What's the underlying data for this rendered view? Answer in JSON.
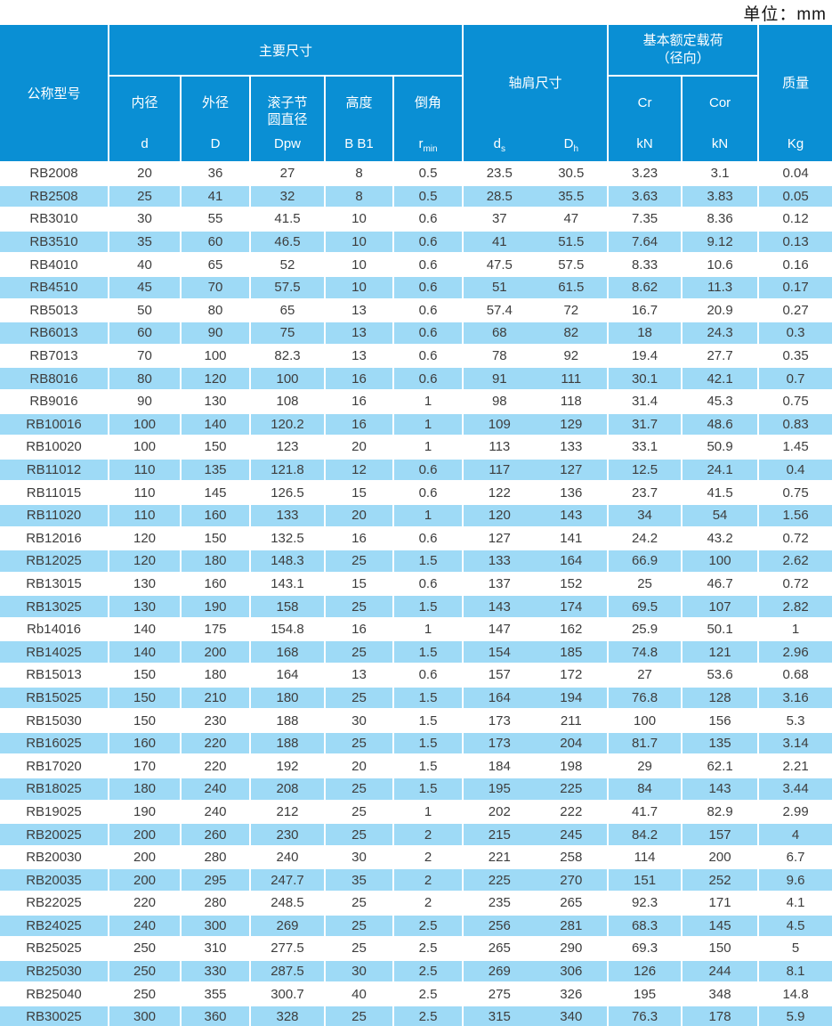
{
  "unit_label": "单位：mm",
  "colors": {
    "header_bg": "#0a8fd4",
    "row_alt_bg": "#9edaf6",
    "header_text": "#ffffff",
    "body_text": "#3d3d3d"
  },
  "table": {
    "header": {
      "model": "公称型号",
      "main_dims": "主要尺寸",
      "shoulder_dims": "轴肩尺寸",
      "load_line1": "基本额定载荷",
      "load_line2": "（径向）",
      "mass": "质量",
      "inner": {
        "label": "内径",
        "sym": "d"
      },
      "outer": {
        "label": "外径",
        "sym": "D"
      },
      "pitch": {
        "label_line1": "滚子节",
        "label_line2": "圆直径",
        "sym": "Dpw"
      },
      "height": {
        "label": "高度",
        "sym": "B B1"
      },
      "chamfer": {
        "label": "倒角",
        "sym_base": "r",
        "sym_sub": "min"
      },
      "ds": {
        "base": "d",
        "sub": "s"
      },
      "dh": {
        "base": "D",
        "sub": "h"
      },
      "cr": {
        "label": "Cr",
        "unit": "kN"
      },
      "cor": {
        "label": "Cor",
        "unit": "kN"
      },
      "mass_unit": "Kg"
    },
    "row_fields": [
      "model",
      "d",
      "D",
      "Dpw",
      "B B1",
      "r min",
      "ds",
      "Dh",
      "Cr",
      "Cor",
      "mass"
    ],
    "rows": [
      [
        "RB2008",
        "20",
        "36",
        "27",
        "8",
        "0.5",
        "23.5",
        "30.5",
        "3.23",
        "3.1",
        "0.04"
      ],
      [
        "RB2508",
        "25",
        "41",
        "32",
        "8",
        "0.5",
        "28.5",
        "35.5",
        "3.63",
        "3.83",
        "0.05"
      ],
      [
        "RB3010",
        "30",
        "55",
        "41.5",
        "10",
        "0.6",
        "37",
        "47",
        "7.35",
        "8.36",
        "0.12"
      ],
      [
        "RB3510",
        "35",
        "60",
        "46.5",
        "10",
        "0.6",
        "41",
        "51.5",
        "7.64",
        "9.12",
        "0.13"
      ],
      [
        "RB4010",
        "40",
        "65",
        "52",
        "10",
        "0.6",
        "47.5",
        "57.5",
        "8.33",
        "10.6",
        "0.16"
      ],
      [
        "RB4510",
        "45",
        "70",
        "57.5",
        "10",
        "0.6",
        "51",
        "61.5",
        "8.62",
        "11.3",
        "0.17"
      ],
      [
        "RB5013",
        "50",
        "80",
        "65",
        "13",
        "0.6",
        "57.4",
        "72",
        "16.7",
        "20.9",
        "0.27"
      ],
      [
        "RB6013",
        "60",
        "90",
        "75",
        "13",
        "0.6",
        "68",
        "82",
        "18",
        "24.3",
        "0.3"
      ],
      [
        "RB7013",
        "70",
        "100",
        "82.3",
        "13",
        "0.6",
        "78",
        "92",
        "19.4",
        "27.7",
        "0.35"
      ],
      [
        "RB8016",
        "80",
        "120",
        "100",
        "16",
        "0.6",
        "91",
        "111",
        "30.1",
        "42.1",
        "0.7"
      ],
      [
        "RB9016",
        "90",
        "130",
        "108",
        "16",
        "1",
        "98",
        "118",
        "31.4",
        "45.3",
        "0.75"
      ],
      [
        "RB10016",
        "100",
        "140",
        "120.2",
        "16",
        "1",
        "109",
        "129",
        "31.7",
        "48.6",
        "0.83"
      ],
      [
        "RB10020",
        "100",
        "150",
        "123",
        "20",
        "1",
        "113",
        "133",
        "33.1",
        "50.9",
        "1.45"
      ],
      [
        "RB11012",
        "110",
        "135",
        "121.8",
        "12",
        "0.6",
        "117",
        "127",
        "12.5",
        "24.1",
        "0.4"
      ],
      [
        "RB11015",
        "110",
        "145",
        "126.5",
        "15",
        "0.6",
        "122",
        "136",
        "23.7",
        "41.5",
        "0.75"
      ],
      [
        "RB11020",
        "110",
        "160",
        "133",
        "20",
        "1",
        "120",
        "143",
        "34",
        "54",
        "1.56"
      ],
      [
        "RB12016",
        "120",
        "150",
        "132.5",
        "16",
        "0.6",
        "127",
        "141",
        "24.2",
        "43.2",
        "0.72"
      ],
      [
        "RB12025",
        "120",
        "180",
        "148.3",
        "25",
        "1.5",
        "133",
        "164",
        "66.9",
        "100",
        "2.62"
      ],
      [
        "RB13015",
        "130",
        "160",
        "143.1",
        "15",
        "0.6",
        "137",
        "152",
        "25",
        "46.7",
        "0.72"
      ],
      [
        "RB13025",
        "130",
        "190",
        "158",
        "25",
        "1.5",
        "143",
        "174",
        "69.5",
        "107",
        "2.82"
      ],
      [
        "Rb14016",
        "140",
        "175",
        "154.8",
        "16",
        "1",
        "147",
        "162",
        "25.9",
        "50.1",
        "1"
      ],
      [
        "RB14025",
        "140",
        "200",
        "168",
        "25",
        "1.5",
        "154",
        "185",
        "74.8",
        "121",
        "2.96"
      ],
      [
        "RB15013",
        "150",
        "180",
        "164",
        "13",
        "0.6",
        "157",
        "172",
        "27",
        "53.6",
        "0.68"
      ],
      [
        "RB15025",
        "150",
        "210",
        "180",
        "25",
        "1.5",
        "164",
        "194",
        "76.8",
        "128",
        "3.16"
      ],
      [
        "RB15030",
        "150",
        "230",
        "188",
        "30",
        "1.5",
        "173",
        "211",
        "100",
        "156",
        "5.3"
      ],
      [
        "RB16025",
        "160",
        "220",
        "188",
        "25",
        "1.5",
        "173",
        "204",
        "81.7",
        "135",
        "3.14"
      ],
      [
        "RB17020",
        "170",
        "220",
        "192",
        "20",
        "1.5",
        "184",
        "198",
        "29",
        "62.1",
        "2.21"
      ],
      [
        "RB18025",
        "180",
        "240",
        "208",
        "25",
        "1.5",
        "195",
        "225",
        "84",
        "143",
        "3.44"
      ],
      [
        "RB19025",
        "190",
        "240",
        "212",
        "25",
        "1",
        "202",
        "222",
        "41.7",
        "82.9",
        "2.99"
      ],
      [
        "RB20025",
        "200",
        "260",
        "230",
        "25",
        "2",
        "215",
        "245",
        "84.2",
        "157",
        "4"
      ],
      [
        "RB20030",
        "200",
        "280",
        "240",
        "30",
        "2",
        "221",
        "258",
        "114",
        "200",
        "6.7"
      ],
      [
        "RB20035",
        "200",
        "295",
        "247.7",
        "35",
        "2",
        "225",
        "270",
        "151",
        "252",
        "9.6"
      ],
      [
        "RB22025",
        "220",
        "280",
        "248.5",
        "25",
        "2",
        "235",
        "265",
        "92.3",
        "171",
        "4.1"
      ],
      [
        "RB24025",
        "240",
        "300",
        "269",
        "25",
        "2.5",
        "256",
        "281",
        "68.3",
        "145",
        "4.5"
      ],
      [
        "RB25025",
        "250",
        "310",
        "277.5",
        "25",
        "2.5",
        "265",
        "290",
        "69.3",
        "150",
        "5"
      ],
      [
        "RB25030",
        "250",
        "330",
        "287.5",
        "30",
        "2.5",
        "269",
        "306",
        "126",
        "244",
        "8.1"
      ],
      [
        "RB25040",
        "250",
        "355",
        "300.7",
        "40",
        "2.5",
        "275",
        "326",
        "195",
        "348",
        "14.8"
      ],
      [
        "RB30025",
        "300",
        "360",
        "328",
        "25",
        "2.5",
        "315",
        "340",
        "76.3",
        "178",
        "5.9"
      ]
    ]
  }
}
